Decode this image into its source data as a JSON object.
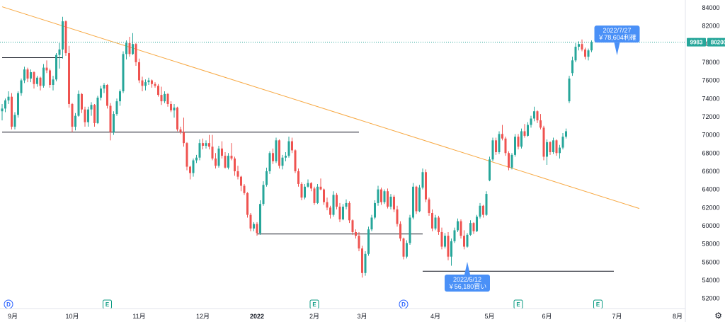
{
  "chart_data": {
    "type": "candlestick",
    "symbol": "9983",
    "last_price": "80200",
    "y_ticks": [
      52000,
      54000,
      56000,
      58000,
      60000,
      62000,
      64000,
      66000,
      68000,
      70000,
      72000,
      74000,
      76000,
      78000,
      80000,
      82000,
      84000
    ],
    "ylim": [
      51200,
      84300
    ],
    "x_labels": [
      {
        "label": "9月",
        "bold": false
      },
      {
        "label": "10月",
        "bold": false
      },
      {
        "label": "11月",
        "bold": false
      },
      {
        "label": "12月",
        "bold": false
      },
      {
        "label": "2022",
        "bold": true
      },
      {
        "label": "2月",
        "bold": false
      },
      {
        "label": "3月",
        "bold": false
      },
      {
        "label": "4月",
        "bold": false
      },
      {
        "label": "5月",
        "bold": false
      },
      {
        "label": "6月",
        "bold": false
      },
      {
        "label": "7月",
        "bold": false
      },
      {
        "label": "8月",
        "bold": false
      }
    ],
    "candles": [
      [
        72600,
        73400,
        71600,
        72900
      ],
      [
        72900,
        74000,
        72500,
        73800
      ],
      [
        73800,
        74800,
        73400,
        74200
      ],
      [
        74200,
        74600,
        70600,
        70900
      ],
      [
        70900,
        72500,
        70600,
        72200
      ],
      [
        72200,
        74800,
        71900,
        74600
      ],
      [
        74600,
        76200,
        74300,
        76000
      ],
      [
        76000,
        77500,
        75700,
        77200
      ],
      [
        77200,
        77400,
        75800,
        76200
      ],
      [
        76200,
        77200,
        75800,
        76900
      ],
      [
        76900,
        77000,
        75100,
        75600
      ],
      [
        75600,
        76500,
        75300,
        76300
      ],
      [
        76300,
        76400,
        74900,
        75400
      ],
      [
        75400,
        77800,
        75200,
        77400
      ],
      [
        77400,
        78200,
        76800,
        77100
      ],
      [
        77100,
        77300,
        75200,
        75500
      ],
      [
        75500,
        76500,
        74900,
        76100
      ],
      [
        76100,
        79000,
        75900,
        78800
      ],
      [
        78800,
        80100,
        77300,
        79400
      ],
      [
        79400,
        83000,
        78400,
        82500
      ],
      [
        82500,
        82600,
        78700,
        79000
      ],
      [
        79000,
        79800,
        73000,
        73400
      ],
      [
        73400,
        73500,
        70300,
        70900
      ],
      [
        70900,
        72400,
        70500,
        72100
      ],
      [
        72100,
        74900,
        72000,
        74500
      ],
      [
        74500,
        74600,
        72400,
        72800
      ],
      [
        72800,
        73100,
        70900,
        71400
      ],
      [
        71400,
        73100,
        70900,
        72800
      ],
      [
        72800,
        73600,
        72100,
        73300
      ],
      [
        73300,
        73400,
        70900,
        71300
      ],
      [
        71300,
        74300,
        71200,
        74100
      ],
      [
        74100,
        75400,
        73800,
        75100
      ],
      [
        75100,
        75700,
        74600,
        75500
      ],
      [
        75500,
        75600,
        72900,
        73200
      ],
      [
        73200,
        73500,
        69400,
        70300
      ],
      [
        70300,
        72600,
        70000,
        72300
      ],
      [
        72300,
        74000,
        72100,
        73700
      ],
      [
        73700,
        75000,
        73200,
        74800
      ],
      [
        74800,
        79200,
        74600,
        78900
      ],
      [
        78900,
        80400,
        78300,
        80100
      ],
      [
        80100,
        80800,
        78600,
        78900
      ],
      [
        78900,
        81200,
        78800,
        80000
      ],
      [
        80000,
        80100,
        77600,
        78000
      ],
      [
        78000,
        78400,
        75700,
        76000
      ],
      [
        76000,
        76400,
        74800,
        75400
      ],
      [
        75400,
        76100,
        74900,
        75800
      ],
      [
        75800,
        76300,
        75500,
        76000
      ],
      [
        76000,
        76100,
        75200,
        75600
      ],
      [
        75600,
        75800,
        75200,
        75400
      ],
      [
        75400,
        75600,
        74200,
        74400
      ],
      [
        74400,
        75300,
        73300,
        73700
      ],
      [
        73700,
        74800,
        73500,
        74500
      ],
      [
        74500,
        74600,
        73100,
        73400
      ],
      [
        73400,
        73700,
        72500,
        72700
      ],
      [
        72700,
        73400,
        71900,
        73000
      ],
      [
        73000,
        73100,
        70400,
        70600
      ],
      [
        70600,
        70900,
        70100,
        70300
      ],
      [
        70300,
        71900,
        68700,
        69100
      ],
      [
        69100,
        69200,
        66100,
        66500
      ],
      [
        66500,
        66600,
        65100,
        65800
      ],
      [
        65800,
        67400,
        65400,
        67200
      ],
      [
        67200,
        67800,
        66900,
        67500
      ],
      [
        67500,
        69500,
        67200,
        69100
      ],
      [
        69100,
        69600,
        68400,
        68800
      ],
      [
        68800,
        69400,
        68500,
        69100
      ],
      [
        69100,
        70000,
        68400,
        68700
      ],
      [
        68700,
        70000,
        67200,
        67400
      ],
      [
        67400,
        68000,
        66300,
        66600
      ],
      [
        66600,
        68800,
        66400,
        68500
      ],
      [
        68500,
        69300,
        67400,
        67700
      ],
      [
        67700,
        68100,
        66300,
        66400
      ],
      [
        66400,
        68000,
        66200,
        67700
      ],
      [
        67700,
        69100,
        67200,
        67400
      ],
      [
        67400,
        67600,
        65500,
        66000
      ],
      [
        66000,
        66600,
        65100,
        65400
      ],
      [
        65400,
        65500,
        63800,
        64400
      ],
      [
        64400,
        64600,
        63400,
        63600
      ],
      [
        63600,
        63700,
        60900,
        61200
      ],
      [
        61200,
        61400,
        59400,
        59700
      ],
      [
        59700,
        60400,
        59400,
        60200
      ],
      [
        60200,
        60400,
        58900,
        59200
      ],
      [
        59200,
        62800,
        59000,
        62400
      ],
      [
        62400,
        64900,
        62200,
        64500
      ],
      [
        64500,
        66400,
        64300,
        66000
      ],
      [
        66000,
        68200,
        65700,
        68000
      ],
      [
        68000,
        68500,
        66800,
        67100
      ],
      [
        67100,
        69700,
        66900,
        69400
      ],
      [
        69400,
        69500,
        66300,
        66600
      ],
      [
        66600,
        67800,
        66200,
        67500
      ],
      [
        67500,
        68100,
        67100,
        67700
      ],
      [
        67700,
        69800,
        67500,
        69300
      ],
      [
        69300,
        69700,
        68000,
        68300
      ],
      [
        68300,
        68400,
        65800,
        66000
      ],
      [
        66000,
        66300,
        64300,
        64600
      ],
      [
        64600,
        64800,
        62800,
        63100
      ],
      [
        63100,
        64600,
        62900,
        64300
      ],
      [
        64300,
        65100,
        64200,
        64700
      ],
      [
        64700,
        64800,
        63800,
        64100
      ],
      [
        64100,
        64300,
        62300,
        62500
      ],
      [
        62500,
        64600,
        62400,
        64300
      ],
      [
        64300,
        65200,
        63900,
        64000
      ],
      [
        64000,
        64100,
        62300,
        62600
      ],
      [
        62600,
        63100,
        61700,
        62000
      ],
      [
        62000,
        62200,
        60800,
        61200
      ],
      [
        61200,
        63800,
        61000,
        63400
      ],
      [
        63400,
        63600,
        61800,
        62100
      ],
      [
        62100,
        62500,
        60400,
        60700
      ],
      [
        60700,
        62400,
        60600,
        62100
      ],
      [
        62100,
        62900,
        61800,
        62500
      ],
      [
        62500,
        62700,
        60300,
        60600
      ],
      [
        60600,
        60700,
        59000,
        59300
      ],
      [
        59300,
        59600,
        58600,
        58900
      ],
      [
        58900,
        59300,
        57200,
        57500
      ],
      [
        57500,
        57800,
        54300,
        54800
      ],
      [
        54800,
        57200,
        54500,
        56900
      ],
      [
        56900,
        59900,
        56700,
        59600
      ],
      [
        59600,
        61200,
        59400,
        60900
      ],
      [
        60900,
        62800,
        60700,
        62500
      ],
      [
        62500,
        64400,
        62200,
        64000
      ],
      [
        64000,
        64200,
        62300,
        62600
      ],
      [
        62600,
        64000,
        62400,
        63800
      ],
      [
        63800,
        64100,
        61900,
        62100
      ],
      [
        62100,
        63500,
        61800,
        63200
      ],
      [
        63200,
        63400,
        61500,
        61800
      ],
      [
        61800,
        62200,
        59900,
        60200
      ],
      [
        60200,
        60500,
        58300,
        58600
      ],
      [
        58600,
        58700,
        56300,
        56600
      ],
      [
        56600,
        58400,
        56400,
        58100
      ],
      [
        58100,
        61200,
        57900,
        60900
      ],
      [
        60900,
        64700,
        60700,
        64300
      ],
      [
        64300,
        64400,
        61300,
        61600
      ],
      [
        61600,
        64500,
        61500,
        64200
      ],
      [
        64200,
        66300,
        64000,
        65900
      ],
      [
        65900,
        66200,
        62600,
        62900
      ],
      [
        62900,
        63100,
        61100,
        61400
      ],
      [
        61400,
        61800,
        59400,
        59700
      ],
      [
        59700,
        61200,
        59500,
        60900
      ],
      [
        60900,
        61100,
        59000,
        59300
      ],
      [
        59300,
        59800,
        57400,
        57700
      ],
      [
        57700,
        59200,
        57500,
        58900
      ],
      [
        58900,
        59300,
        56200,
        56600
      ],
      [
        56600,
        58600,
        55600,
        58300
      ],
      [
        58300,
        59800,
        58100,
        59500
      ],
      [
        59500,
        60800,
        59300,
        60500
      ],
      [
        60500,
        60700,
        58600,
        58900
      ],
      [
        58900,
        59500,
        57400,
        57700
      ],
      [
        57700,
        59200,
        57600,
        59000
      ],
      [
        59000,
        60600,
        58900,
        60300
      ],
      [
        60300,
        60400,
        59100,
        59400
      ],
      [
        59400,
        61200,
        59300,
        61000
      ],
      [
        61000,
        62500,
        60800,
        62200
      ],
      [
        62200,
        62300,
        60900,
        61200
      ],
      [
        61200,
        63800,
        61100,
        63500
      ],
      [
        65000,
        67600,
        64900,
        67300
      ],
      [
        67300,
        69700,
        67100,
        69400
      ],
      [
        69400,
        69700,
        67800,
        68100
      ],
      [
        68100,
        70400,
        67900,
        70100
      ],
      [
        70100,
        71100,
        69400,
        69600
      ],
      [
        69600,
        69800,
        67700,
        68000
      ],
      [
        68000,
        68200,
        66100,
        66400
      ],
      [
        66400,
        68000,
        66200,
        67800
      ],
      [
        67800,
        70100,
        67600,
        69800
      ],
      [
        69800,
        70100,
        68400,
        68700
      ],
      [
        68700,
        70700,
        68500,
        70400
      ],
      [
        70400,
        71200,
        69700,
        69900
      ],
      [
        69900,
        71400,
        69800,
        71100
      ],
      [
        71100,
        72100,
        70800,
        71800
      ],
      [
        71800,
        73100,
        71500,
        72600
      ],
      [
        72600,
        72700,
        71300,
        71600
      ],
      [
        71600,
        72300,
        70600,
        70800
      ],
      [
        70800,
        71000,
        67200,
        67600
      ],
      [
        67600,
        69500,
        66700,
        69200
      ],
      [
        69200,
        69300,
        67800,
        68100
      ],
      [
        68100,
        69700,
        67900,
        69400
      ],
      [
        69400,
        69500,
        67700,
        68000
      ],
      [
        68000,
        68900,
        67400,
        68600
      ],
      [
        68600,
        70200,
        68400,
        69800
      ],
      [
        69800,
        70700,
        69600,
        70400
      ],
      [
        73700,
        76500,
        73500,
        76200
      ],
      [
        76800,
        78600,
        76500,
        78200
      ],
      [
        78200,
        80100,
        78000,
        79700
      ],
      [
        79700,
        80300,
        79300,
        80000
      ],
      [
        80000,
        80500,
        79200,
        79400
      ],
      [
        79400,
        79600,
        78300,
        78600
      ],
      [
        78600,
        79500,
        78200,
        79300
      ],
      [
        79300,
        80400,
        79100,
        80200
      ]
    ],
    "lines": [
      {
        "name": "下降トレンドライン",
        "color": "#f7a740",
        "points": [
          [
            0,
            84100
          ],
          [
            200,
            61900
          ]
        ]
      },
      {
        "name": "水平線1",
        "color": "#131722",
        "points": [
          [
            0,
            78500
          ],
          [
            19,
            78500
          ]
        ]
      },
      {
        "name": "水平線2",
        "color": "#131722",
        "points": [
          [
            0,
            70300
          ],
          [
            112,
            70300
          ]
        ]
      },
      {
        "name": "水平線3",
        "color": "#131722",
        "points": [
          [
            80,
            59100
          ],
          [
            132,
            59100
          ]
        ]
      },
      {
        "name": "水平線4",
        "color": "#131722",
        "points": [
          [
            132,
            55000
          ],
          [
            192,
            55000
          ]
        ]
      }
    ],
    "last_price_line": {
      "value": 80200,
      "color": "#26a69a"
    },
    "markers": [
      {
        "type": "buy",
        "date_label": "2022/5/12",
        "price_label": "￥56,180買い",
        "candle": 146,
        "price": 56180
      },
      {
        "type": "sell",
        "date_label": "2022/7/27",
        "price_label": "￥78,604利確",
        "candle": 193,
        "price": 78604
      }
    ],
    "event_badges": [
      {
        "letter": "D",
        "candle": 2
      },
      {
        "letter": "E",
        "candle": 33
      },
      {
        "letter": "E",
        "candle": 98
      },
      {
        "letter": "D",
        "candle": 126
      },
      {
        "letter": "E",
        "candle": 162
      },
      {
        "letter": "E",
        "candle": 187
      }
    ],
    "colors": {
      "up": "#26a69a",
      "down": "#ef5350",
      "badge_d": "#2962ff",
      "badge_e": "#089981",
      "callout": "#4a90f7",
      "axis_text": "#131722"
    }
  },
  "settings_icon": "gear-icon"
}
